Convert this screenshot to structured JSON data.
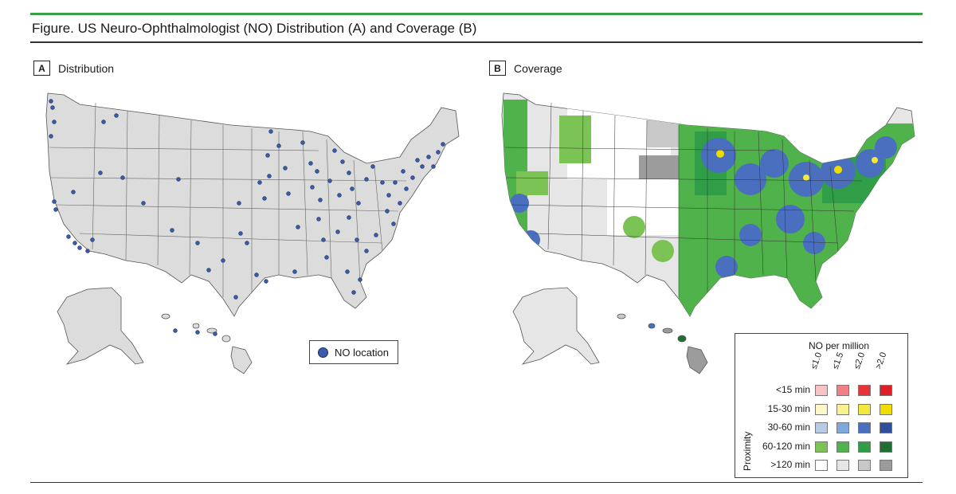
{
  "figure": {
    "title": "Figure. US Neuro-Ophthalmologist (NO) Distribution (A) and Coverage (B)"
  },
  "panel_a": {
    "letter": "A",
    "label": "Distribution",
    "legend_label": "NO location",
    "point_color": "#3b5ca8",
    "land_color": "#dcdcdc"
  },
  "panel_b": {
    "letter": "B",
    "label": "Coverage",
    "legend": {
      "header": "NO per million",
      "columns": [
        "≤1.0",
        "≤1.5",
        "≤2.0",
        ">2.0"
      ],
      "axis_label": "Proximity",
      "rows": [
        {
          "label": "<15 min",
          "colors": [
            "#f7c3c6",
            "#f07f86",
            "#e8323a",
            "#de1f26"
          ]
        },
        {
          "label": "15-30 min",
          "colors": [
            "#fdf6c7",
            "#fbf090",
            "#f5e83c",
            "#efdd00"
          ]
        },
        {
          "label": "30-60 min",
          "colors": [
            "#b8cbe6",
            "#7fa9dd",
            "#4a6fbf",
            "#2f4f9c"
          ]
        },
        {
          "label": "60-120 min",
          "colors": [
            "#7cc356",
            "#4fb24a",
            "#2f9e46",
            "#1f6e34"
          ]
        },
        {
          "label": ">120 min",
          "colors": [
            "#ffffff",
            "#e6e6e6",
            "#c8c8c8",
            "#9c9c9c"
          ]
        }
      ]
    }
  }
}
